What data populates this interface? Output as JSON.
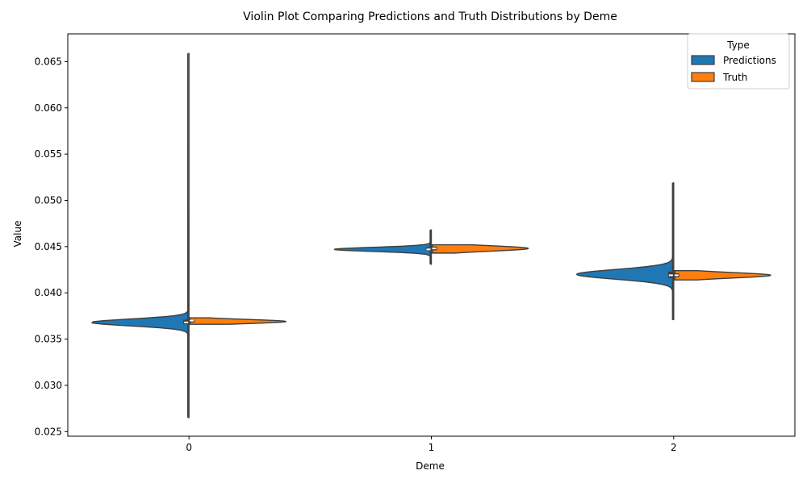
{
  "chart_data": {
    "type": "violin",
    "title": "Violin Plot Comparing Predictions and Truth Distributions by Deme",
    "xlabel": "Deme",
    "ylabel": "Value",
    "categories": [
      "0",
      "1",
      "2"
    ],
    "ylim": [
      0.0245,
      0.068
    ],
    "yticks": [
      "0.025",
      "0.030",
      "0.035",
      "0.040",
      "0.045",
      "0.050",
      "0.055",
      "0.060",
      "0.065"
    ],
    "grid": false,
    "split": true,
    "legend": {
      "title": "Type",
      "placement": "top-right"
    },
    "series": [
      {
        "name": "Predictions",
        "color": "#1f77b4",
        "distributions": [
          {
            "category": "0",
            "min": 0.0265,
            "max": 0.0659,
            "q1": 0.0366,
            "median": 0.0368,
            "q3": 0.0371,
            "peak": 0.0368
          },
          {
            "category": "1",
            "min": 0.0431,
            "max": 0.0468,
            "q1": 0.0446,
            "median": 0.0447,
            "q3": 0.0449,
            "peak": 0.0447
          },
          {
            "category": "2",
            "min": 0.0371,
            "max": 0.0519,
            "q1": 0.0416,
            "median": 0.0419,
            "q3": 0.0423,
            "peak": 0.042
          }
        ]
      },
      {
        "name": "Truth",
        "color": "#ff7f0e",
        "distributions": [
          {
            "category": "0",
            "min": 0.0366,
            "max": 0.0373,
            "q1": 0.0368,
            "median": 0.037,
            "q3": 0.0371,
            "peak": 0.0369
          },
          {
            "category": "1",
            "min": 0.0443,
            "max": 0.0452,
            "q1": 0.0446,
            "median": 0.0448,
            "q3": 0.045,
            "peak": 0.0448
          },
          {
            "category": "2",
            "min": 0.0414,
            "max": 0.0424,
            "q1": 0.0417,
            "median": 0.0419,
            "q3": 0.0421,
            "peak": 0.0419
          }
        ]
      }
    ]
  }
}
